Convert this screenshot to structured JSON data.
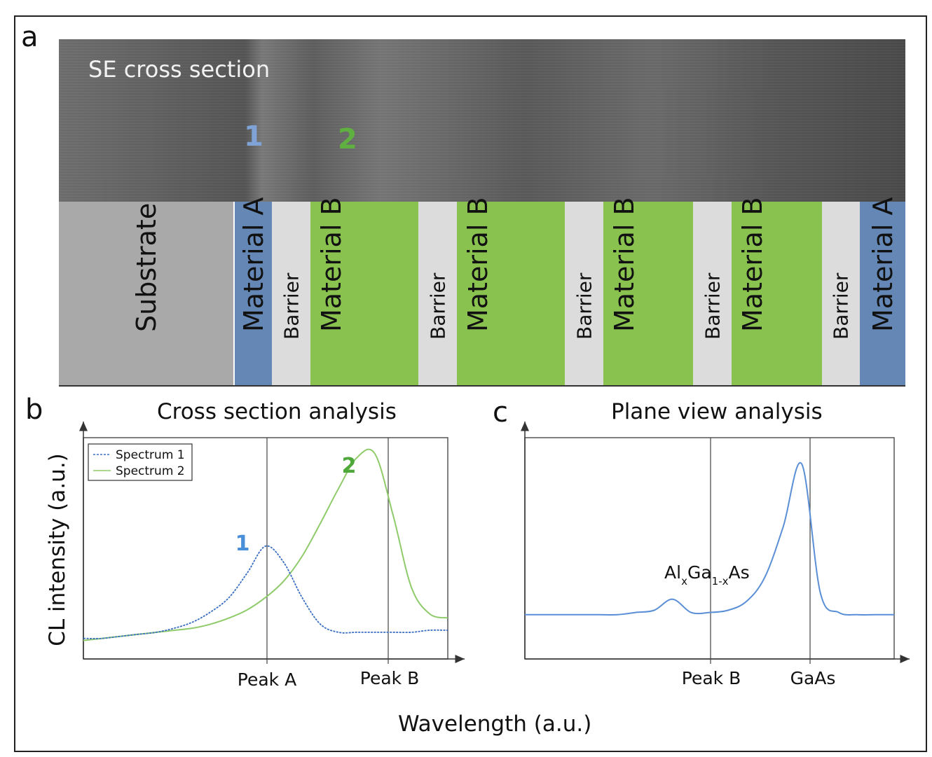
{
  "panels": {
    "a": "a",
    "b": "b",
    "c": "c"
  },
  "se_image": {
    "title": "SE cross section",
    "markers": [
      {
        "label": "1",
        "color": "#7fa3d6"
      },
      {
        "label": "2",
        "color": "#5fb040"
      }
    ]
  },
  "layers": [
    {
      "label": "Substrate",
      "kind": "substrate"
    },
    {
      "label": "Material A",
      "kind": "mat-a"
    },
    {
      "label": "Barrier",
      "kind": "barrier"
    },
    {
      "label": "Material B",
      "kind": "mat-b"
    },
    {
      "label": "Barrier",
      "kind": "barrier"
    },
    {
      "label": "Material B",
      "kind": "mat-b"
    },
    {
      "label": "Barrier",
      "kind": "barrier"
    },
    {
      "label": "Material B",
      "kind": "mat-b"
    },
    {
      "label": "Barrier",
      "kind": "barrier"
    },
    {
      "label": "Material B",
      "kind": "mat-b"
    },
    {
      "label": "Barrier",
      "kind": "barrier"
    },
    {
      "label": "Material A",
      "kind": "mat-a"
    }
  ],
  "chart_data": [
    {
      "type": "line",
      "title": "Cross section analysis",
      "xlabel": "Wavelength (a.u.)",
      "ylabel": "CL intensity (a.u.)",
      "x_ticks": [
        "Peak A",
        "Peak B"
      ],
      "legend": {
        "placement": "top-left",
        "entries": [
          "Spectrum 1",
          "Spectrum 2"
        ]
      },
      "annotations": [
        "1",
        "2"
      ],
      "colors": {
        "spectrum_1": "#3a6fc4",
        "spectrum_2": "#8fcb6a",
        "label_1": "#4a90d9",
        "label_2": "#4ea83a"
      },
      "series": [
        {
          "name": "Spectrum 1",
          "values": [
            0.1,
            0.1,
            0.11,
            0.12,
            0.13,
            0.15,
            0.18,
            0.23,
            0.3,
            0.42,
            0.55,
            0.47,
            0.3,
            0.17,
            0.13,
            0.13,
            0.13,
            0.13,
            0.13,
            0.14,
            0.14
          ]
        },
        {
          "name": "Spectrum 2",
          "values": [
            0.09,
            0.1,
            0.11,
            0.12,
            0.13,
            0.14,
            0.15,
            0.17,
            0.2,
            0.24,
            0.3,
            0.38,
            0.5,
            0.66,
            0.83,
            0.98,
            1.0,
            0.7,
            0.35,
            0.22,
            0.2
          ]
        }
      ]
    },
    {
      "type": "line",
      "title": "Plane view analysis",
      "x_ticks": [
        "Peak B",
        "GaAs"
      ],
      "annotation": {
        "base1": "Al",
        "sub1": "x",
        "base2": "Ga",
        "sub2": "1-x",
        "base3": "As"
      },
      "colors": {
        "curve": "#5a8fd6"
      },
      "series": [
        {
          "values": [
            0.2,
            0.2,
            0.2,
            0.2,
            0.2,
            0.2,
            0.21,
            0.22,
            0.27,
            0.21,
            0.21,
            0.22,
            0.26,
            0.37,
            0.6,
            0.88,
            0.3,
            0.21,
            0.2,
            0.2,
            0.2
          ]
        }
      ]
    }
  ]
}
